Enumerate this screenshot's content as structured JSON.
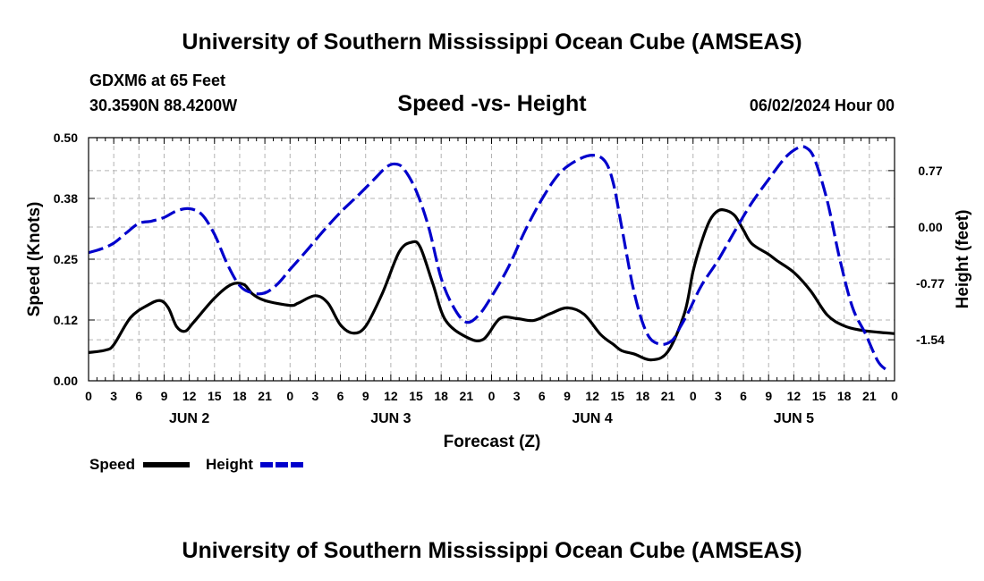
{
  "header": {
    "title": "University of Southern Mississippi Ocean Cube (AMSEAS)",
    "station": "GDXM6 at 65 Feet",
    "coords": "30.3590N  88.4200W",
    "subtitle": "Speed -vs- Height",
    "date": "06/02/2024 Hour 00"
  },
  "footer": {
    "title": "University of Southern Mississippi Ocean Cube (AMSEAS)"
  },
  "legend": {
    "speed_label": "Speed",
    "height_label": "Height"
  },
  "chart_data": {
    "type": "line",
    "title": "Speed -vs- Height",
    "xlabel": "Forecast (Z)",
    "ylabel": "Speed (Knots)",
    "ylabel_right": "Height (feet)",
    "xlim": [
      0,
      96
    ],
    "ylim": [
      0,
      0.5
    ],
    "ylim_right": [
      -2.1,
      1.22
    ],
    "x_ticks": [
      0,
      3,
      6,
      9,
      12,
      15,
      18,
      21,
      24,
      27,
      30,
      33,
      36,
      39,
      42,
      45,
      48,
      51,
      54,
      57,
      60,
      63,
      66,
      69,
      72,
      75,
      78,
      81,
      84,
      87,
      90,
      93,
      96
    ],
    "x_tick_labels": [
      "0",
      "3",
      "6",
      "9",
      "12",
      "15",
      "18",
      "21",
      "0",
      "3",
      "6",
      "9",
      "12",
      "15",
      "18",
      "21",
      "0",
      "3",
      "6",
      "9",
      "12",
      "15",
      "18",
      "21",
      "0",
      "3",
      "6",
      "9",
      "12",
      "15",
      "18",
      "21",
      "0"
    ],
    "day_labels": [
      {
        "x": 12,
        "label": "JUN 2"
      },
      {
        "x": 36,
        "label": "JUN 3"
      },
      {
        "x": 60,
        "label": "JUN 4"
      },
      {
        "x": 84,
        "label": "JUN 5"
      }
    ],
    "y_ticks": [
      0.0,
      0.125,
      0.25,
      0.375,
      0.5
    ],
    "y_tick_labels": [
      "0.00",
      "0.12",
      "0.25",
      "0.38",
      "0.50"
    ],
    "y_right_ticks": [
      0.77,
      0.0,
      -0.77,
      -1.54
    ],
    "y_right_tick_labels": [
      "0.77",
      "0.00",
      "-0.77",
      "-1.54"
    ],
    "grid": true,
    "legend_position": "bottom-left",
    "series": [
      {
        "name": "Speed",
        "axis": "left",
        "color": "#000000",
        "dash": "solid",
        "x": [
          0,
          2,
          3,
          5,
          7,
          8.5,
          9.5,
          10.5,
          11.5,
          12.5,
          15,
          17,
          18.5,
          19.5,
          21,
          24,
          25,
          27,
          28.5,
          30,
          31.5,
          33,
          35,
          37,
          38.5,
          39.5,
          41,
          42.5,
          45,
          47,
          49,
          51,
          53,
          55,
          57,
          59,
          61,
          62.5,
          63.5,
          65,
          67,
          69,
          71,
          72,
          73,
          74,
          75,
          76,
          77,
          78,
          79,
          81,
          82,
          84,
          86,
          88,
          90,
          92,
          94,
          96
        ],
        "y": [
          0.058,
          0.063,
          0.074,
          0.13,
          0.155,
          0.165,
          0.15,
          0.111,
          0.102,
          0.12,
          0.17,
          0.198,
          0.198,
          0.179,
          0.165,
          0.155,
          0.16,
          0.175,
          0.16,
          0.115,
          0.098,
          0.112,
          0.18,
          0.265,
          0.285,
          0.275,
          0.2,
          0.125,
          0.09,
          0.085,
          0.128,
          0.128,
          0.124,
          0.138,
          0.15,
          0.137,
          0.095,
          0.075,
          0.062,
          0.055,
          0.043,
          0.06,
          0.14,
          0.225,
          0.285,
          0.33,
          0.35,
          0.35,
          0.339,
          0.31,
          0.282,
          0.26,
          0.247,
          0.223,
          0.185,
          0.135,
          0.113,
          0.104,
          0.1,
          0.097
        ]
      },
      {
        "name": "Height",
        "axis": "right",
        "color": "#0000cc",
        "dash": "dashed",
        "x": [
          0,
          1.5,
          3,
          4.5,
          6,
          7.5,
          9,
          10.5,
          12,
          13.5,
          15,
          16.5,
          18,
          19.5,
          21,
          22.5,
          24,
          26,
          28,
          30,
          32,
          34,
          35.5,
          36.5,
          37.5,
          39,
          40.5,
          42,
          43.5,
          45,
          46.5,
          48,
          50,
          52,
          54,
          56,
          58,
          60,
          61.5,
          62.5,
          63.5,
          65,
          66.5,
          68,
          69.5,
          70.5,
          71.5,
          73,
          75,
          77,
          79,
          81,
          83,
          84.5,
          85.5,
          86.5,
          88,
          89.5,
          91,
          92.5,
          94,
          95
        ],
        "y": [
          -0.35,
          -0.3,
          -0.22,
          -0.08,
          0.05,
          0.08,
          0.13,
          0.22,
          0.25,
          0.17,
          -0.1,
          -0.5,
          -0.8,
          -0.9,
          -0.9,
          -0.78,
          -0.58,
          -0.32,
          -0.05,
          0.2,
          0.42,
          0.65,
          0.82,
          0.86,
          0.8,
          0.5,
          0.0,
          -0.7,
          -1.1,
          -1.3,
          -1.2,
          -0.95,
          -0.55,
          -0.05,
          0.38,
          0.72,
          0.9,
          0.98,
          0.9,
          0.6,
          0.0,
          -0.9,
          -1.45,
          -1.6,
          -1.55,
          -1.36,
          -1.15,
          -0.8,
          -0.45,
          -0.05,
          0.33,
          0.65,
          0.95,
          1.08,
          1.08,
          0.92,
          0.35,
          -0.45,
          -1.1,
          -1.45,
          -1.83,
          -1.95
        ]
      }
    ]
  }
}
